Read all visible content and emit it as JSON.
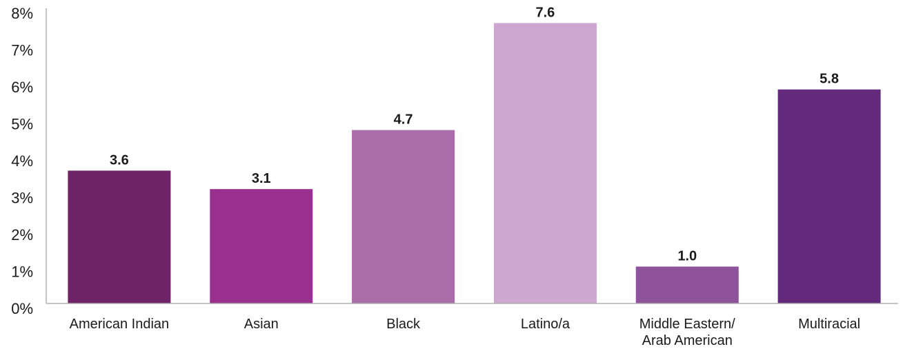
{
  "chart_data": {
    "type": "bar",
    "categories": [
      "American Indian",
      "Asian",
      "Black",
      "Latino/a",
      "Middle  Eastern/\nArab American",
      "Multiracial"
    ],
    "values": [
      3.6,
      3.1,
      4.7,
      7.6,
      1.0,
      5.8
    ],
    "value_labels": [
      "3.6",
      "3.1",
      "4.7",
      "7.6",
      "1.0",
      "5.8"
    ],
    "colors": [
      "#6E2367",
      "#993090",
      "#AB6CAA",
      "#CDA7D0",
      "#8E539A",
      "#63297A"
    ],
    "y_ticks": [
      "0%",
      "1%",
      "2%",
      "3%",
      "4%",
      "5%",
      "6%",
      "7%",
      "8%"
    ],
    "ylim": [
      0,
      8
    ],
    "title": "",
    "xlabel": "",
    "ylabel": "",
    "grid": false,
    "legend": "none"
  }
}
